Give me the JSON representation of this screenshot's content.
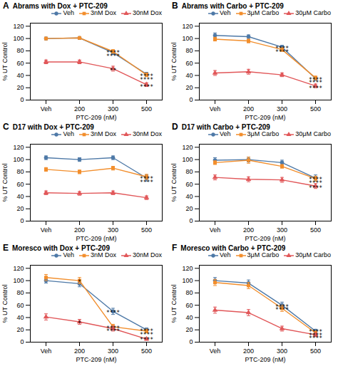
{
  "chart_data": [
    {
      "type": "line",
      "panel_label": "A",
      "title": "Abrams with Dox + PTC-209",
      "xlabel": "PTC-209 (nM)",
      "ylabel": "% UT Control",
      "categories": [
        "Veh",
        "200",
        "300",
        "500"
      ],
      "series": [
        {
          "name": "Veh",
          "marker": "circle",
          "values": [
            100,
            101,
            77,
            42
          ],
          "yerr": [
            2,
            2,
            3,
            3
          ]
        },
        {
          "name": "3nM Dox",
          "marker": "square",
          "values": [
            100,
            101,
            79,
            41
          ],
          "yerr": [
            2,
            2,
            3,
            3
          ]
        },
        {
          "name": "30nM Dox",
          "marker": "triangle",
          "values": [
            62,
            62,
            51,
            25
          ],
          "yerr": [
            3,
            3,
            4,
            3
          ]
        }
      ],
      "ylim": [
        0,
        125
      ],
      "yticks": [
        0,
        20,
        40,
        60,
        80,
        100,
        120
      ],
      "grid": false,
      "legend": "upper right",
      "annotations": [
        {
          "x": "300",
          "y": 73,
          "text": "****"
        },
        {
          "x": "300",
          "y": 68,
          "text": "****"
        },
        {
          "x": "300",
          "y": 44,
          "text": "**"
        },
        {
          "x": "500",
          "y": 35,
          "text": "****"
        },
        {
          "x": "500",
          "y": 30,
          "text": "****"
        },
        {
          "x": "500",
          "y": 18,
          "text": "****"
        }
      ]
    },
    {
      "type": "line",
      "panel_label": "B",
      "title": "Abrams with Carbo + PTC-209",
      "xlabel": "PTC-209 (nM)",
      "ylabel": "% UT Control",
      "categories": [
        "Veh",
        "200",
        "300",
        "500"
      ],
      "series": [
        {
          "name": "Veh",
          "marker": "circle",
          "values": [
            105,
            103,
            86,
            35
          ],
          "yerr": [
            4,
            3,
            3,
            3
          ]
        },
        {
          "name": "3μM Carbo",
          "marker": "square",
          "values": [
            99,
            96,
            82,
            36
          ],
          "yerr": [
            3,
            3,
            3,
            3
          ]
        },
        {
          "name": "30μM Carbo",
          "marker": "triangle",
          "values": [
            44,
            46,
            41,
            23
          ],
          "yerr": [
            4,
            4,
            3,
            3
          ]
        }
      ],
      "ylim": [
        0,
        125
      ],
      "yticks": [
        0,
        20,
        40,
        60,
        80,
        100,
        120
      ],
      "grid": false,
      "legend": "upper right",
      "annotations": [
        {
          "x": "300",
          "y": 80,
          "text": "****"
        },
        {
          "x": "300",
          "y": 75,
          "text": "****"
        },
        {
          "x": "500",
          "y": 30,
          "text": "****"
        },
        {
          "x": "500",
          "y": 25,
          "text": "****"
        },
        {
          "x": "500",
          "y": 16,
          "text": "****"
        }
      ]
    },
    {
      "type": "line",
      "panel_label": "C",
      "title": "D17 with Dox + PTC-209",
      "xlabel": "PTC-209 (nM)",
      "ylabel": "% UT Control",
      "categories": [
        "Veh",
        "200",
        "300",
        "500"
      ],
      "series": [
        {
          "name": "Veh",
          "marker": "circle",
          "values": [
            103,
            100,
            103,
            70
          ],
          "yerr": [
            3,
            3,
            3,
            5
          ]
        },
        {
          "name": "3nM Dox",
          "marker": "square",
          "values": [
            84,
            80,
            86,
            72
          ],
          "yerr": [
            3,
            3,
            3,
            4
          ]
        },
        {
          "name": "30nM Dox",
          "marker": "triangle",
          "values": [
            46,
            45,
            46,
            38
          ],
          "yerr": [
            3,
            3,
            3,
            3
          ]
        }
      ],
      "ylim": [
        0,
        125
      ],
      "yticks": [
        0,
        20,
        40,
        60,
        80,
        100,
        120
      ],
      "grid": false,
      "legend": "upper right",
      "annotations": [
        {
          "x": "500",
          "y": 65,
          "text": "****"
        },
        {
          "x": "500",
          "y": 60,
          "text": "****"
        }
      ]
    },
    {
      "type": "line",
      "panel_label": "D",
      "title": "D17 with Carbo + PTC-209",
      "xlabel": "PTC-209 (nM)",
      "ylabel": "% UT Control",
      "categories": [
        "Veh",
        "200",
        "300",
        "500"
      ],
      "series": [
        {
          "name": "Veh",
          "marker": "circle",
          "values": [
            99,
            100,
            95,
            70
          ],
          "yerr": [
            4,
            4,
            4,
            5
          ]
        },
        {
          "name": "3μM Carbo",
          "marker": "square",
          "values": [
            95,
            99,
            89,
            69
          ],
          "yerr": [
            3,
            5,
            3,
            4
          ]
        },
        {
          "name": "30μM Carbo",
          "marker": "triangle",
          "values": [
            71,
            68,
            67,
            57
          ],
          "yerr": [
            4,
            4,
            4,
            4
          ]
        }
      ],
      "ylim": [
        0,
        125
      ],
      "yticks": [
        0,
        20,
        40,
        60,
        80,
        100,
        120
      ],
      "grid": false,
      "legend": "upper right",
      "annotations": [
        {
          "x": "500",
          "y": 64,
          "text": "****"
        },
        {
          "x": "500",
          "y": 59,
          "text": "****"
        },
        {
          "x": "500",
          "y": 50,
          "text": "****"
        }
      ]
    },
    {
      "type": "line",
      "panel_label": "E",
      "title": "Moresco with Dox + PTC-209",
      "xlabel": "PTC-209 (nM)",
      "ylabel": "% UT Control",
      "categories": [
        "Veh",
        "200",
        "300",
        "500"
      ],
      "series": [
        {
          "name": "Veh",
          "marker": "circle",
          "values": [
            100,
            95,
            50,
            20
          ],
          "yerr": [
            4,
            5,
            5,
            3
          ]
        },
        {
          "name": "3nM Dox",
          "marker": "square",
          "values": [
            105,
            100,
            25,
            18
          ],
          "yerr": [
            5,
            5,
            4,
            3
          ]
        },
        {
          "name": "30nM Dox",
          "marker": "triangle",
          "values": [
            41,
            33,
            22,
            5
          ],
          "yerr": [
            5,
            4,
            4,
            2
          ]
        }
      ],
      "ylim": [
        0,
        125
      ],
      "yticks": [
        0,
        20,
        40,
        60,
        80,
        100,
        120
      ],
      "grid": false,
      "legend": "upper right",
      "annotations": [
        {
          "x": "200",
          "y": 94,
          "text": "*"
        },
        {
          "x": "200",
          "y": 27,
          "text": "*"
        },
        {
          "x": "300",
          "y": 44,
          "text": "****"
        },
        {
          "x": "300",
          "y": 19,
          "text": "****"
        },
        {
          "x": "300",
          "y": 14,
          "text": "****"
        },
        {
          "x": "500",
          "y": 14,
          "text": "****"
        },
        {
          "x": "500",
          "y": 9,
          "text": "****"
        },
        {
          "x": "500",
          "y": 1,
          "text": "****"
        }
      ]
    },
    {
      "type": "line",
      "panel_label": "F",
      "title": "Moresco with Carbo + PTC-209",
      "xlabel": "PTC-209 (nM)",
      "ylabel": "% UT Control",
      "categories": [
        "Veh",
        "200",
        "300",
        "500"
      ],
      "series": [
        {
          "name": "Veh",
          "marker": "circle",
          "values": [
            100,
            96,
            60,
            18
          ],
          "yerr": [
            5,
            5,
            5,
            3
          ]
        },
        {
          "name": "3μM Carbo",
          "marker": "square",
          "values": [
            97,
            92,
            55,
            15
          ],
          "yerr": [
            5,
            5,
            5,
            3
          ]
        },
        {
          "name": "30μM Carbo",
          "marker": "triangle",
          "values": [
            52,
            48,
            22,
            12
          ],
          "yerr": [
            5,
            5,
            4,
            3
          ]
        }
      ],
      "ylim": [
        0,
        125
      ],
      "yticks": [
        0,
        20,
        40,
        60,
        80,
        100,
        120
      ],
      "grid": false,
      "legend": "upper right",
      "annotations": [
        {
          "x": "300",
          "y": 54,
          "text": "****"
        },
        {
          "x": "300",
          "y": 49,
          "text": "****"
        },
        {
          "x": "500",
          "y": 13,
          "text": "****"
        },
        {
          "x": "500",
          "y": 8,
          "text": "****"
        },
        {
          "x": "500",
          "y": 3,
          "text": "****"
        }
      ]
    }
  ]
}
